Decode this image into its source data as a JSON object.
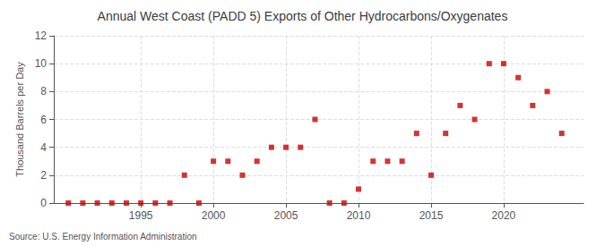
{
  "chart_data": {
    "type": "scatter",
    "title": "Annual West Coast (PADD 5) Exports of Other Hydrocarbons/Oxygenates",
    "ylabel": "Thousand Barrels per Day",
    "annotation": "Source: U.S. Energy Information Administration",
    "x": [
      1990,
      1991,
      1992,
      1993,
      1994,
      1995,
      1996,
      1997,
      1998,
      1999,
      2000,
      2001,
      2002,
      2003,
      2004,
      2005,
      2006,
      2007,
      2008,
      2009,
      2010,
      2011,
      2012,
      2013,
      2014,
      2015,
      2016,
      2017,
      2018,
      2019,
      2020,
      2021,
      2022,
      2023,
      2024
    ],
    "values": [
      0,
      0,
      0,
      0,
      0,
      0,
      0,
      0,
      2,
      0,
      3,
      3,
      2,
      3,
      4,
      4,
      4,
      6,
      0,
      0,
      1,
      3,
      3,
      3,
      5,
      2,
      5,
      7,
      6,
      10,
      10,
      9,
      7,
      8,
      5
    ],
    "color": "#cc0000",
    "marker": "square",
    "xlim": [
      1989.0,
      2025.5
    ],
    "xticks": [
      1995,
      2000,
      2005,
      2010,
      2015,
      2020
    ],
    "ylim": [
      0,
      12
    ],
    "yticks": [
      0,
      2,
      4,
      6,
      8,
      10,
      12
    ],
    "grid": true
  }
}
